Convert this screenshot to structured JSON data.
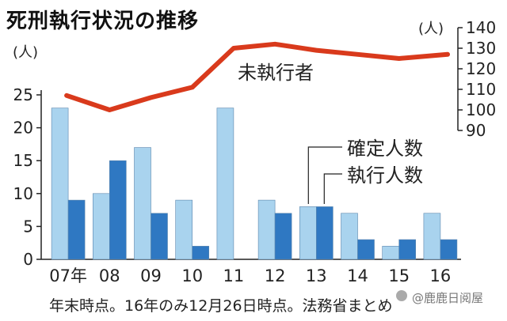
{
  "title": "死刑執行状況の推移",
  "footnote": "年末時点。16年のみ12月26日時点。法務省まとめ",
  "watermark": "@鹿鹿日阅屋",
  "chart_data": {
    "type": "bar",
    "categories": [
      "07年",
      "08",
      "09",
      "10",
      "11",
      "12",
      "13",
      "14",
      "15",
      "16"
    ],
    "ylabel": "(人)",
    "ylim": [
      0,
      25
    ],
    "yticks": [
      0,
      5,
      10,
      15,
      20,
      25
    ],
    "series": [
      {
        "name": "確定人数",
        "values": [
          23,
          10,
          17,
          9,
          23,
          9,
          8,
          7,
          2,
          7
        ],
        "color": "#a9d3ee"
      },
      {
        "name": "執行人数",
        "values": [
          9,
          15,
          7,
          2,
          0,
          7,
          8,
          3,
          3,
          3
        ],
        "color": "#2f78c2"
      }
    ],
    "line": {
      "name": "未執行者",
      "values": [
        107,
        100,
        106,
        111,
        130,
        132,
        129,
        127,
        125,
        127
      ],
      "color": "#d93a1c",
      "axis_label": "(人)",
      "ylim": [
        90,
        140
      ],
      "yticks": [
        90,
        100,
        110,
        120,
        130,
        140
      ]
    }
  }
}
